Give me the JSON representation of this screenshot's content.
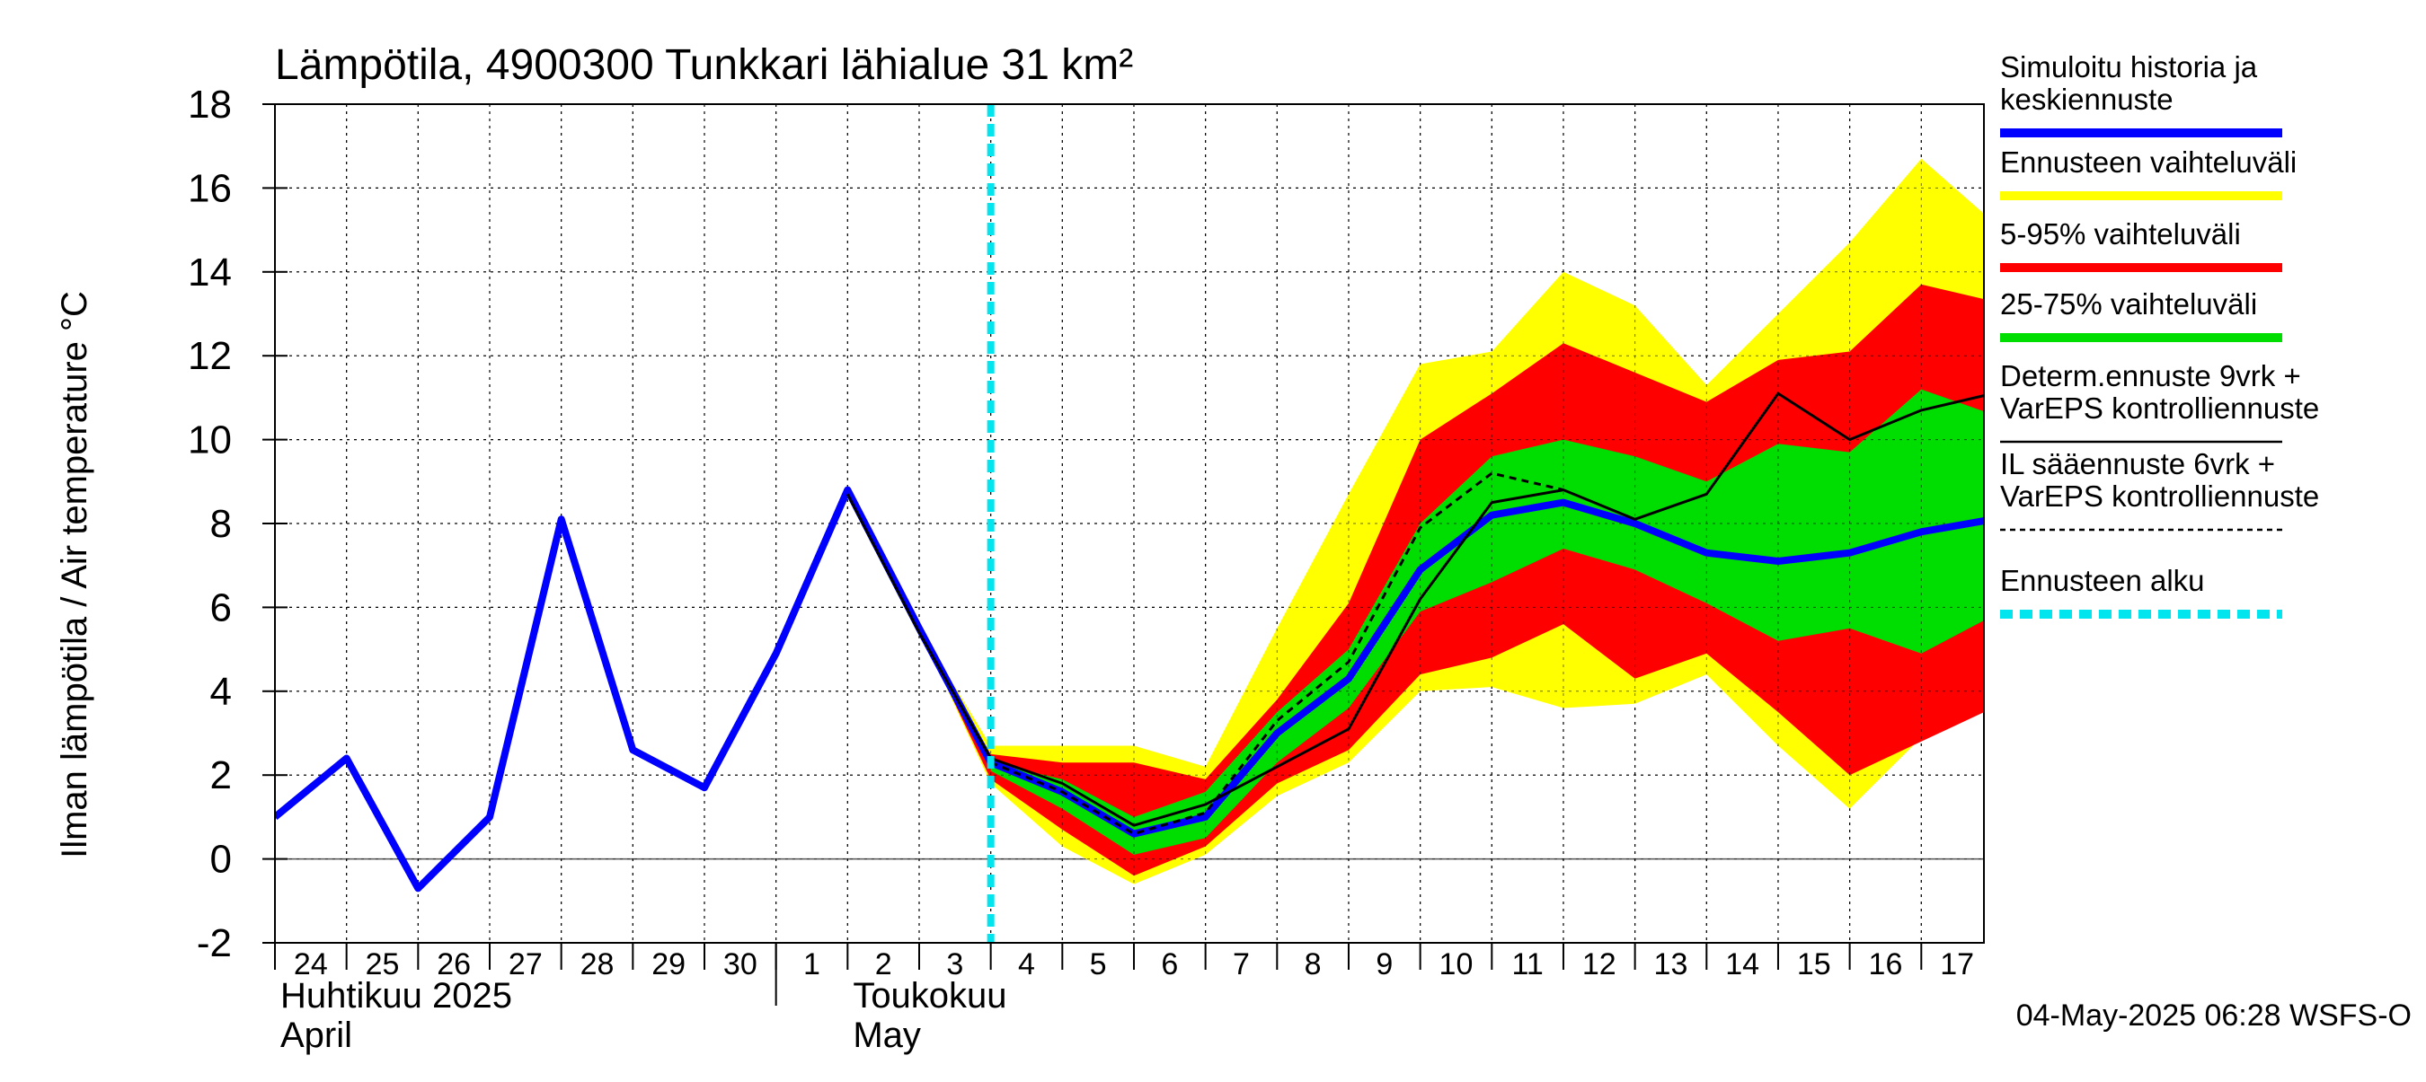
{
  "chart_data": {
    "type": "area",
    "title": "Lämpötila, 4900300 Tunkkari lähialue 31 km²",
    "ylabel": "Ilman lämpötila / Air temperature    °C",
    "ylim": [
      -2,
      18
    ],
    "yticks": [
      -2,
      0,
      2,
      4,
      6,
      8,
      10,
      12,
      14,
      16,
      18
    ],
    "xlim": [
      "2025-04-24",
      "2025-05-17T21:00"
    ],
    "x_tick_labels": [
      "24",
      "25",
      "26",
      "27",
      "28",
      "29",
      "30",
      "1",
      "2",
      "3",
      "4",
      "5",
      "6",
      "7",
      "8",
      "9",
      "10",
      "11",
      "12",
      "13",
      "14",
      "15",
      "16",
      "17"
    ],
    "x_tick_dates": [
      "2025-04-24",
      "2025-04-25",
      "2025-04-26",
      "2025-04-27",
      "2025-04-28",
      "2025-04-29",
      "2025-04-30",
      "2025-05-01",
      "2025-05-02",
      "2025-05-03",
      "2025-05-04",
      "2025-05-05",
      "2025-05-06",
      "2025-05-07",
      "2025-05-08",
      "2025-05-09",
      "2025-05-10",
      "2025-05-11",
      "2025-05-12",
      "2025-05-13",
      "2025-05-14",
      "2025-05-15",
      "2025-05-16",
      "2025-05-17"
    ],
    "month_labels": [
      {
        "fi": "Huhtikuu  2025",
        "en": "April",
        "date": "2025-04-24"
      },
      {
        "fi": "Toukokuu",
        "en": "May",
        "date": "2025-05-02"
      }
    ],
    "month_boundary": "2025-05-01",
    "grid": true,
    "forecast_start": "2025-05-04",
    "timestamp": "04-May-2025 06:28 WSFS-O",
    "series": [
      {
        "name": "Simuloitu historia ja keskiennuste",
        "style": "line",
        "color": "#0000ff",
        "x": [
          "2025-04-24",
          "2025-04-25",
          "2025-04-26",
          "2025-04-27",
          "2025-04-28",
          "2025-04-29",
          "2025-04-30",
          "2025-05-01",
          "2025-05-02",
          "2025-05-03",
          "2025-05-04",
          "2025-05-05",
          "2025-05-06",
          "2025-05-07",
          "2025-05-08",
          "2025-05-09",
          "2025-05-10",
          "2025-05-11",
          "2025-05-12",
          "2025-05-13",
          "2025-05-14",
          "2025-05-15",
          "2025-05-16",
          "2025-05-17",
          "2025-05-18"
        ],
        "values": [
          1.0,
          2.4,
          -0.7,
          1.0,
          8.1,
          2.6,
          1.7,
          4.9,
          8.8,
          5.5,
          2.3,
          1.6,
          0.6,
          1.0,
          3.0,
          4.3,
          6.9,
          8.2,
          8.5,
          8.0,
          7.3,
          7.1,
          7.3,
          7.8,
          8.1
        ]
      },
      {
        "name": "Determ.ennuste 9vrk + VarEPS kontrolliennuste",
        "style": "line",
        "color": "#000000",
        "x": [
          "2025-05-02",
          "2025-05-03",
          "2025-05-04",
          "2025-05-05",
          "2025-05-06",
          "2025-05-07",
          "2025-05-08",
          "2025-05-09",
          "2025-05-10",
          "2025-05-11",
          "2025-05-12",
          "2025-05-13",
          "2025-05-14",
          "2025-05-15",
          "2025-05-16",
          "2025-05-17",
          "2025-05-18"
        ],
        "values": [
          8.7,
          5.4,
          2.4,
          1.8,
          0.8,
          1.3,
          2.2,
          3.1,
          6.2,
          8.5,
          8.8,
          8.1,
          8.7,
          11.1,
          10.0,
          10.7,
          11.1
        ]
      },
      {
        "name": "IL sääennuste 6vrk  +   VarEPS kontrolliennuste",
        "style": "dashed",
        "color": "#000000",
        "x": [
          "2025-05-04",
          "2025-05-05",
          "2025-05-06",
          "2025-05-07",
          "2025-05-08",
          "2025-05-09",
          "2025-05-10",
          "2025-05-11",
          "2025-05-12"
        ],
        "values": [
          2.3,
          1.6,
          0.6,
          1.1,
          3.3,
          4.7,
          7.9,
          9.2,
          8.8
        ]
      }
    ],
    "bands": [
      {
        "name": "Ennusteen vaihteluväli",
        "color": "#ffff00",
        "x": [
          "2025-05-03",
          "2025-05-04",
          "2025-05-05",
          "2025-05-06",
          "2025-05-07",
          "2025-05-08",
          "2025-05-09",
          "2025-05-10",
          "2025-05-11",
          "2025-05-12",
          "2025-05-13",
          "2025-05-14",
          "2025-05-15",
          "2025-05-16",
          "2025-05-17",
          "2025-05-18"
        ],
        "upper": [
          5.5,
          2.7,
          2.7,
          2.7,
          2.2,
          5.5,
          8.7,
          11.8,
          12.1,
          14.0,
          13.2,
          11.3,
          13.0,
          14.7,
          16.7,
          15.2
        ],
        "lower": [
          5.5,
          1.8,
          0.3,
          -0.6,
          0.1,
          1.5,
          2.3,
          4.0,
          4.1,
          3.6,
          3.7,
          4.4,
          2.7,
          1.2,
          2.9,
          3.8
        ]
      },
      {
        "name": "5-95% vaihteluväli",
        "color": "#ff0000",
        "x": [
          "2025-05-03",
          "2025-05-04",
          "2025-05-05",
          "2025-05-06",
          "2025-05-07",
          "2025-05-08",
          "2025-05-09",
          "2025-05-10",
          "2025-05-11",
          "2025-05-12",
          "2025-05-13",
          "2025-05-14",
          "2025-05-15",
          "2025-05-16",
          "2025-05-17",
          "2025-05-18"
        ],
        "upper": [
          5.5,
          2.5,
          2.3,
          2.3,
          1.9,
          3.8,
          6.1,
          10.0,
          11.1,
          12.3,
          11.6,
          10.9,
          11.9,
          12.1,
          13.7,
          13.3
        ],
        "lower": [
          5.5,
          1.9,
          0.7,
          -0.4,
          0.3,
          1.8,
          2.6,
          4.4,
          4.8,
          5.6,
          4.3,
          4.9,
          3.5,
          2.0,
          2.8,
          3.6
        ]
      },
      {
        "name": "25-75% vaihteluväli",
        "color": "#00dd00",
        "x": [
          "2025-05-04",
          "2025-05-05",
          "2025-05-06",
          "2025-05-07",
          "2025-05-08",
          "2025-05-09",
          "2025-05-10",
          "2025-05-11",
          "2025-05-12",
          "2025-05-13",
          "2025-05-14",
          "2025-05-15",
          "2025-05-16",
          "2025-05-17",
          "2025-05-18"
        ],
        "upper": [
          2.3,
          1.9,
          1.0,
          1.6,
          3.5,
          5.0,
          8.0,
          9.6,
          10.0,
          9.6,
          9.0,
          9.9,
          9.7,
          11.2,
          10.6
        ],
        "lower": [
          2.1,
          1.2,
          0.1,
          0.5,
          2.3,
          3.6,
          5.9,
          6.6,
          7.4,
          6.9,
          6.1,
          5.2,
          5.5,
          4.9,
          5.8
        ]
      }
    ],
    "legend": [
      {
        "lines": [
          "Simuloitu historia ja",
          "keskiennuste"
        ],
        "color": "#0000ff",
        "style": "thick"
      },
      {
        "lines": [
          "Ennusteen vaihteluväli"
        ],
        "color": "#ffff00",
        "style": "thick"
      },
      {
        "lines": [
          "5-95% vaihteluväli"
        ],
        "color": "#ff0000",
        "style": "thick"
      },
      {
        "lines": [
          "25-75% vaihteluväli"
        ],
        "color": "#00dd00",
        "style": "thick"
      },
      {
        "lines": [
          "Determ.ennuste 9vrk +",
          "VarEPS kontrolliennuste"
        ],
        "color": "#000000",
        "style": "thin"
      },
      {
        "lines": [
          "IL sääennuste 6vrk  +",
          "  VarEPS kontrolliennuste"
        ],
        "color": "#000000",
        "style": "dashed"
      },
      {
        "lines": [
          "Ennusteen alku"
        ],
        "color": "#00e5ee",
        "style": "thick-dashed"
      }
    ],
    "legend_position": "right"
  }
}
